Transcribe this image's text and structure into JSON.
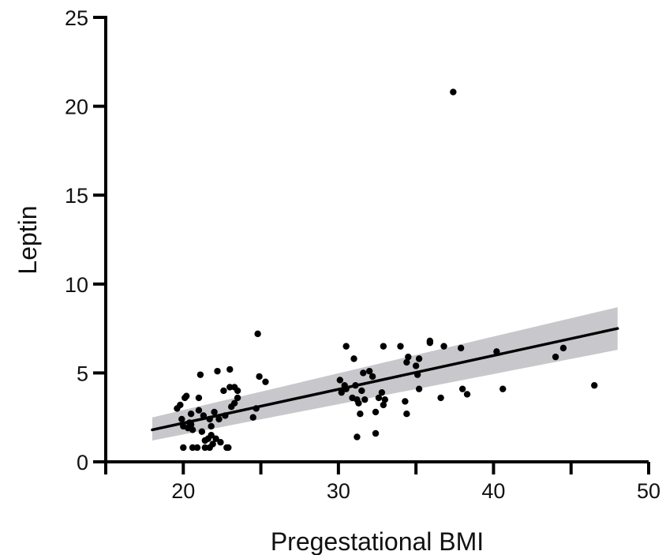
{
  "chart_data": {
    "type": "scatter",
    "title": "",
    "xlabel": "Pregestational BMI",
    "ylabel": "Leptin",
    "xlim": [
      15,
      50
    ],
    "ylim": [
      0,
      25
    ],
    "xticks": [
      20,
      30,
      40,
      50
    ],
    "yticks": [
      0,
      5,
      10,
      15,
      20,
      25
    ],
    "grid": false,
    "legend": "none",
    "colors": {
      "points": "#000000",
      "fit_line": "#000000",
      "confidence_band": "#c8c8cc",
      "axes": "#000000"
    },
    "fit": {
      "type": "linear",
      "x_range": [
        18,
        48
      ],
      "y_at_start": 1.8,
      "y_at_end": 7.5,
      "band_at_start": [
        1.2,
        2.5
      ],
      "band_at_end": [
        6.3,
        8.7
      ]
    },
    "points": [
      [
        19.6,
        3.0
      ],
      [
        19.8,
        3.2
      ],
      [
        19.9,
        2.4
      ],
      [
        20.0,
        2.0
      ],
      [
        20.1,
        3.6
      ],
      [
        20.2,
        3.7
      ],
      [
        20.3,
        1.9
      ],
      [
        20.4,
        2.2
      ],
      [
        20.5,
        2.7
      ],
      [
        20.6,
        1.8
      ],
      [
        20.0,
        0.8
      ],
      [
        20.6,
        0.8
      ],
      [
        20.9,
        0.8
      ],
      [
        21.0,
        3.6
      ],
      [
        21.0,
        2.9
      ],
      [
        21.1,
        4.9
      ],
      [
        21.2,
        1.7
      ],
      [
        21.3,
        2.6
      ],
      [
        21.4,
        1.2
      ],
      [
        21.4,
        0.8
      ],
      [
        21.6,
        1.3
      ],
      [
        21.7,
        2.4
      ],
      [
        21.7,
        0.8
      ],
      [
        21.8,
        2.0
      ],
      [
        21.9,
        1.0
      ],
      [
        22.0,
        2.8
      ],
      [
        22.1,
        1.3
      ],
      [
        22.2,
        5.1
      ],
      [
        22.3,
        2.4
      ],
      [
        22.4,
        1.1
      ],
      [
        22.6,
        4.0
      ],
      [
        22.7,
        2.6
      ],
      [
        22.8,
        0.8
      ],
      [
        22.9,
        0.8
      ],
      [
        23.0,
        5.2
      ],
      [
        23.1,
        3.1
      ],
      [
        23.3,
        4.2
      ],
      [
        23.3,
        3.3
      ],
      [
        23.5,
        3.6
      ],
      [
        23.5,
        4.0
      ],
      [
        23.0,
        4.2
      ],
      [
        24.5,
        2.5
      ],
      [
        24.7,
        3.0
      ],
      [
        24.8,
        7.2
      ],
      [
        24.9,
        4.8
      ],
      [
        25.3,
        4.5
      ],
      [
        20.5,
        2.1
      ],
      [
        21.8,
        1.5
      ],
      [
        30.1,
        4.6
      ],
      [
        30.2,
        3.9
      ],
      [
        30.4,
        4.3
      ],
      [
        30.5,
        4.1
      ],
      [
        30.5,
        6.5
      ],
      [
        30.9,
        3.6
      ],
      [
        31.0,
        5.8
      ],
      [
        31.1,
        4.3
      ],
      [
        31.2,
        3.5
      ],
      [
        31.3,
        3.3
      ],
      [
        31.4,
        2.7
      ],
      [
        31.5,
        4.0
      ],
      [
        31.6,
        5.0
      ],
      [
        31.7,
        3.5
      ],
      [
        31.2,
        1.4
      ],
      [
        32.0,
        5.1
      ],
      [
        32.2,
        4.8
      ],
      [
        32.4,
        2.8
      ],
      [
        32.6,
        3.6
      ],
      [
        32.4,
        1.6
      ],
      [
        32.8,
        3.9
      ],
      [
        32.9,
        3.2
      ],
      [
        33.0,
        3.5
      ],
      [
        32.9,
        6.5
      ],
      [
        34.0,
        6.5
      ],
      [
        34.3,
        3.4
      ],
      [
        34.4,
        2.7
      ],
      [
        34.5,
        5.9
      ],
      [
        34.4,
        5.6
      ],
      [
        35.0,
        5.4
      ],
      [
        35.1,
        4.9
      ],
      [
        35.2,
        4.1
      ],
      [
        35.2,
        5.8
      ],
      [
        35.9,
        6.7
      ],
      [
        35.9,
        6.8
      ],
      [
        36.6,
        3.6
      ],
      [
        36.8,
        6.5
      ],
      [
        37.4,
        20.8
      ],
      [
        37.9,
        6.4
      ],
      [
        38.0,
        4.1
      ],
      [
        38.3,
        3.8
      ],
      [
        40.2,
        6.2
      ],
      [
        40.6,
        4.1
      ],
      [
        44.0,
        5.9
      ],
      [
        44.5,
        6.4
      ],
      [
        46.5,
        4.3
      ]
    ]
  }
}
